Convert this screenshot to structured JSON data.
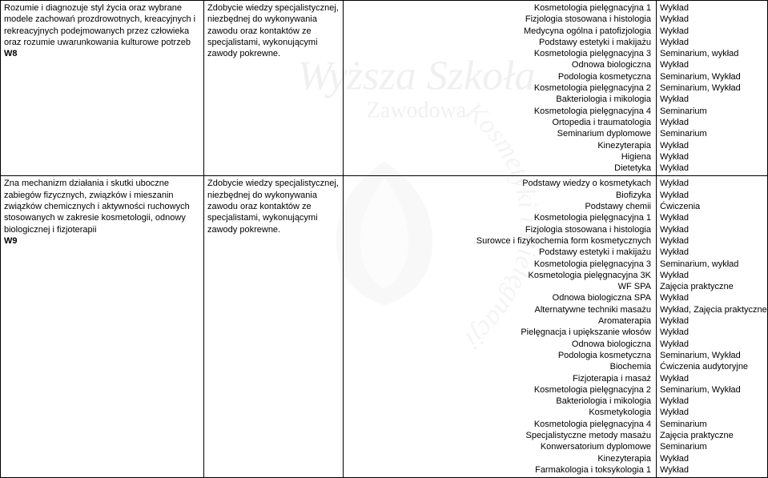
{
  "watermark": {
    "line1": "Wyższa Szkoła",
    "line2": "Zawodowa",
    "circle_text": "Kosmetyki i Pielęgnacji"
  },
  "row1": {
    "desc": "Rozumie i diagnozuje styl życia oraz wybrane modele zachowań prozdrowotnych, kreacyjnych i rekreacyjnych podejmowanych przez człowieka oraz rozumie uwarunkowania kulturowe potrzeb",
    "code": "W8",
    "acq": "Zdobycie wiedzy specjalistycznej, niezbędnej do wykonywania zawodu oraz kontaktów ze specjalistami, wykonującymi zawody pokrewne.",
    "courses": [
      "Kosmetologia pielęgnacyjna 1",
      "Fizjologia stosowana i histologia",
      "Medycyna ogólna i patofizjologia",
      "Podstawy estetyki i makijażu",
      "Kosmetologia pielęgnacyjna 3",
      "Odnowa biologiczna",
      "Podologia kosmetyczna",
      "Kosmetologia pielęgnacyjna 2",
      "Bakteriologia i mikologia",
      "Kosmetologia pielęgnacyjna 4",
      "Ortopedia i traumatologia",
      "Seminarium dyplomowe",
      "Kinezyterapia",
      "Higiena",
      "Dietetyka"
    ],
    "forms": [
      "Wykład",
      "Wykład",
      "Wykład",
      "Wykład",
      "Seminarium, wykład",
      "Wykład",
      "Seminarium, Wykład",
      "Seminarium, Wykład",
      "Wykład",
      "Seminarium",
      "Wykład",
      "Seminarium",
      "Wykład",
      "Wykład",
      "Wykład"
    ]
  },
  "row2": {
    "desc": "Zna mechanizm działania i skutki uboczne zabiegów fizycznych, związków i mieszanin związków chemicznych i aktywności ruchowych stosowanych w zakresie kosmetologii, odnowy biologicznej i fizjoterapii",
    "code": "W9",
    "acq": "Zdobycie wiedzy specjalistycznej, niezbędnej do wykonywania zawodu oraz kontaktów ze specjalistami, wykonującymi zawody pokrewne.",
    "courses": [
      "Podstawy wiedzy o kosmetykach",
      "Biofizyka",
      "Podstawy chemii",
      "Kosmetologia pielęgnacyjna 1",
      "Fizjologia stosowana i histologia",
      "Surowce i fizykochemia form kosmetycznych",
      "Podstawy estetyki i makijażu",
      "Kosmetologia pielęgnacyjna 3",
      "Kosmetologia pielęgnacyjna 3K",
      "WF SPA",
      "Odnowa biologiczna SPA",
      "Alternatywne techniki masażu",
      "Aromaterapia",
      "Pielęgnacja i upiększanie włosów",
      "Odnowa biologiczna",
      "Podologia kosmetyczna",
      "Biochemia",
      "Fizjoterapia i masaż",
      "Kosmetologia pielęgnacyjna 2",
      "Bakteriologia i mikologia",
      "Kosmetykologia",
      "Kosmetologia pielęgnacyjna 4",
      "Specjalistyczne metody masażu",
      "Konwersatorium dyplomowe",
      "Kinezyterapia",
      "Farmakologia i toksykologia 1"
    ],
    "forms": [
      "Wykład",
      "Wykład",
      "Ćwiczenia",
      "Wykład",
      "Wykład",
      "Wykład",
      "Wykład",
      "Seminarium, wykład",
      "Wykład",
      "Zajęcia praktyczne",
      "Wykład",
      "Wykład, Zajęcia praktyczne",
      "Wykład",
      "Wykład",
      "Wykład",
      "Seminarium, Wykład",
      "Ćwiczenia audytoryjne",
      "Wykład",
      "Seminarium, Wykład",
      "Wykład",
      "Wykład",
      "Seminarium",
      "Zajęcia praktyczne",
      "Seminarium",
      "Wykład",
      "Wykład"
    ]
  }
}
